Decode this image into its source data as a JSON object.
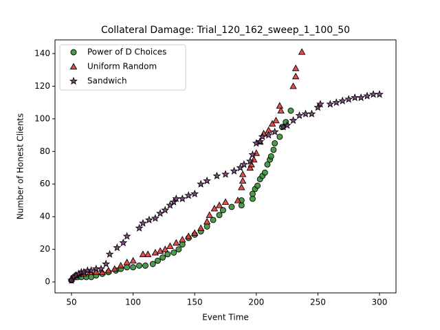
{
  "chart_data": {
    "type": "scatter",
    "title": "Collateral Damage: Trial_120_162_sweep_1_100_50",
    "x_label": "Event Time",
    "y_label": "Number of Honest Clients",
    "xlim": [
      36.6,
      313.4
    ],
    "ylim": [
      -6.7,
      148.4
    ],
    "xticks": [
      50,
      100,
      150,
      200,
      250,
      300
    ],
    "yticks": [
      0,
      20,
      40,
      60,
      80,
      100,
      120,
      140
    ],
    "legend": "upper left",
    "series": [
      {
        "name": "Power of D Choices",
        "color": "#2e8b2e",
        "marker": "circle",
        "x": [
          50,
          52,
          55,
          58,
          62,
          66,
          70,
          75,
          80,
          86,
          90,
          95,
          100,
          105,
          110,
          116,
          120,
          124,
          128,
          133,
          137,
          140,
          145,
          150,
          155,
          160,
          165,
          170,
          173,
          180,
          188,
          188,
          197,
          197,
          199,
          201,
          203,
          205,
          207,
          209,
          211,
          212,
          214,
          215,
          219,
          221,
          224,
          228
        ],
        "values": [
          1,
          3,
          3,
          3,
          3,
          3,
          4,
          5,
          6,
          7,
          8,
          9,
          9,
          10,
          10,
          11,
          13,
          15,
          17,
          18,
          20,
          23,
          27,
          29,
          31,
          34,
          38,
          41,
          44,
          46,
          47,
          50,
          51,
          54,
          57,
          59,
          63,
          65,
          67,
          72,
          75,
          77,
          81,
          85,
          89,
          95,
          98,
          105
        ]
      },
      {
        "name": "Uniform Random",
        "color": "#e03030",
        "marker": "triangle",
        "x": [
          50,
          53,
          56,
          60,
          65,
          70,
          75,
          80,
          85,
          90,
          95,
          100,
          108,
          112,
          118,
          122,
          126,
          130,
          135,
          140,
          145,
          150,
          155,
          160,
          162,
          166,
          170,
          175,
          185,
          188,
          189,
          189,
          195,
          196,
          198,
          200,
          203,
          206,
          210,
          213,
          216,
          219,
          220,
          230,
          232,
          232,
          237
        ],
        "values": [
          2,
          4,
          5,
          5,
          6,
          6,
          6,
          7,
          8,
          10,
          12,
          13,
          17,
          17,
          18,
          19,
          20,
          22,
          24,
          26,
          28,
          30,
          33,
          37,
          41,
          45,
          47,
          49,
          50,
          58,
          62,
          66,
          70,
          72,
          75,
          79,
          86,
          91,
          93,
          97,
          99,
          108,
          105,
          120,
          126,
          131,
          141
        ]
      },
      {
        "name": "Sandwich",
        "color": "#6e2f6e",
        "marker": "star",
        "x": [
          50,
          52,
          54,
          56,
          58,
          60,
          63,
          66,
          70,
          74,
          78,
          81,
          87,
          92,
          95,
          105,
          108,
          113,
          118,
          122,
          126,
          130,
          133,
          135,
          140,
          145,
          150,
          155,
          160,
          168,
          175,
          182,
          187,
          190,
          195,
          197,
          200,
          203,
          205,
          210,
          215,
          222,
          225,
          230,
          235,
          240,
          245,
          250,
          252,
          260,
          265,
          270,
          275,
          280,
          285,
          290,
          295,
          300
        ],
        "values": [
          1,
          3,
          4,
          5,
          6,
          6,
          7,
          7,
          8,
          8,
          11,
          17,
          21,
          24,
          28,
          33,
          36,
          38,
          39,
          42,
          44,
          47,
          49,
          51,
          51,
          53,
          54,
          60,
          62,
          65,
          66,
          68,
          70,
          72,
          74,
          78,
          85,
          86,
          89,
          90,
          92,
          95,
          96,
          99,
          102,
          103,
          103,
          107,
          109,
          109,
          110,
          111,
          112,
          113,
          113,
          114,
          115,
          115
        ]
      }
    ]
  }
}
